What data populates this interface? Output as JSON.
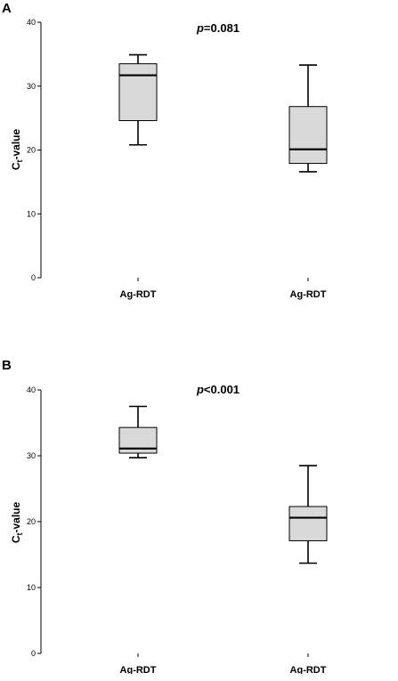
{
  "chart_data": [
    {
      "type": "box",
      "panel": "A",
      "annotation_p": "p",
      "annotation_rest": "=0.081",
      "ylabel_main": "C",
      "ylabel_sub": "t",
      "ylabel_rest": "-value",
      "ylim": [
        0,
        40
      ],
      "yticks": [
        "0",
        "10",
        "20",
        "30",
        "40"
      ],
      "grid": false,
      "categories": [
        "Ag-RDT",
        "Ag-RDT"
      ],
      "boxes": [
        {
          "min": 20.8,
          "q1": 24.6,
          "median": 31.7,
          "q3": 33.5,
          "max": 34.9
        },
        {
          "min": 16.6,
          "q1": 17.9,
          "median": 20.1,
          "q3": 26.8,
          "max": 33.3
        }
      ]
    },
    {
      "type": "box",
      "panel": "B",
      "annotation_p": "p",
      "annotation_rest": "<0.001",
      "ylabel_main": "C",
      "ylabel_sub": "t",
      "ylabel_rest": "-value",
      "ylim": [
        0,
        40
      ],
      "yticks": [
        "0",
        "10",
        "20",
        "30",
        "40"
      ],
      "grid": false,
      "categories": [
        "Ag-RDT",
        "Ag-RDT"
      ],
      "boxes": [
        {
          "min": 29.7,
          "q1": 30.4,
          "median": 31.1,
          "q3": 34.3,
          "max": 37.5
        },
        {
          "min": 13.7,
          "q1": 17.1,
          "median": 20.6,
          "q3": 22.3,
          "max": 28.5
        }
      ]
    }
  ],
  "colors": {
    "box_fill": "#d9d9d9",
    "stroke": "#000000"
  }
}
